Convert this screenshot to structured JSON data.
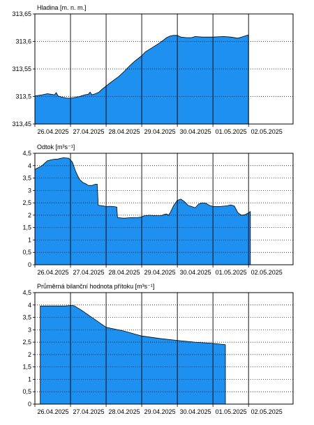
{
  "x_tick_labels": [
    "26.04.2025",
    "27.04.2025",
    "28.04.2025",
    "29.04.2025",
    "30.04.2025",
    "01.05.2025",
    "02.05.2025"
  ],
  "colors": {
    "fill": "#1E90EF",
    "line": "#000000",
    "grid_dotted": "#000000",
    "background": "#ffffff"
  },
  "chart_data": [
    {
      "type": "area",
      "title": "Hladina [m. n. m.]",
      "ylim": [
        313.45,
        313.65
      ],
      "ytick_labels": [
        "313,65",
        "313,6",
        "313,55",
        "313,5",
        "313,45"
      ],
      "x_range": [
        0,
        7.25
      ],
      "x_unit": "days from 26.04.2025 00:00",
      "grid": true,
      "series": [
        {
          "points": [
            [
              0,
              313.501
            ],
            [
              0.2,
              313.503
            ],
            [
              0.35,
              313.505
            ],
            [
              0.45,
              313.504
            ],
            [
              0.55,
              313.503
            ],
            [
              0.6,
              313.507
            ],
            [
              0.65,
              313.501
            ],
            [
              0.75,
              313.499
            ],
            [
              0.9,
              313.497
            ],
            [
              1.0,
              313.497
            ],
            [
              1.1,
              313.498
            ],
            [
              1.25,
              313.5
            ],
            [
              1.4,
              313.503
            ],
            [
              1.5,
              313.504
            ],
            [
              1.55,
              313.508
            ],
            [
              1.6,
              313.503
            ],
            [
              1.7,
              313.505
            ],
            [
              1.8,
              313.508
            ],
            [
              1.9,
              313.514
            ],
            [
              2.0,
              313.519
            ],
            [
              2.1,
              313.524
            ],
            [
              2.2,
              313.529
            ],
            [
              2.35,
              313.536
            ],
            [
              2.5,
              313.545
            ],
            [
              2.65,
              313.555
            ],
            [
              2.8,
              313.564
            ],
            [
              2.9,
              313.569
            ],
            [
              3.0,
              313.574
            ],
            [
              3.1,
              313.581
            ],
            [
              3.3,
              313.589
            ],
            [
              3.45,
              313.595
            ],
            [
              3.6,
              313.602
            ],
            [
              3.7,
              313.607
            ],
            [
              3.8,
              313.61
            ],
            [
              3.9,
              313.611
            ],
            [
              4.0,
              313.611
            ],
            [
              4.1,
              313.608
            ],
            [
              4.25,
              313.607
            ],
            [
              4.4,
              313.607
            ],
            [
              4.5,
              313.609
            ],
            [
              4.7,
              313.608
            ],
            [
              5.0,
              313.608
            ],
            [
              5.3,
              313.609
            ],
            [
              5.5,
              313.608
            ],
            [
              5.7,
              313.606
            ],
            [
              5.8,
              313.608
            ],
            [
              5.9,
              313.61
            ],
            [
              6.0,
              313.612
            ]
          ]
        }
      ]
    },
    {
      "type": "area",
      "title": "Odtok [m³s⁻¹]",
      "ylim": [
        0,
        4.5
      ],
      "ytick_labels": [
        "4,5",
        "4",
        "3,5",
        "3",
        "2,5",
        "2",
        "1,5",
        "1",
        "0,5",
        "0"
      ],
      "x_range": [
        0,
        7.25
      ],
      "x_unit": "days from 26.04.2025 00:00",
      "grid": true,
      "series": [
        {
          "points": [
            [
              0,
              3.85
            ],
            [
              0.2,
              4.0
            ],
            [
              0.35,
              4.2
            ],
            [
              0.5,
              4.25
            ],
            [
              0.65,
              4.27
            ],
            [
              0.8,
              4.32
            ],
            [
              0.95,
              4.3
            ],
            [
              1.05,
              4.15
            ],
            [
              1.15,
              3.75
            ],
            [
              1.25,
              3.45
            ],
            [
              1.35,
              3.32
            ],
            [
              1.45,
              3.25
            ],
            [
              1.5,
              3.2
            ],
            [
              1.6,
              3.2
            ],
            [
              1.7,
              3.25
            ],
            [
              1.75,
              3.25
            ],
            [
              1.78,
              2.4
            ],
            [
              1.9,
              2.38
            ],
            [
              2.0,
              2.35
            ],
            [
              2.1,
              2.36
            ],
            [
              2.2,
              2.35
            ],
            [
              2.3,
              2.33
            ],
            [
              2.32,
              1.9
            ],
            [
              2.5,
              1.88
            ],
            [
              2.7,
              1.9
            ],
            [
              2.9,
              1.91
            ],
            [
              3.0,
              1.93
            ],
            [
              3.05,
              1.97
            ],
            [
              3.2,
              2.0
            ],
            [
              3.4,
              1.98
            ],
            [
              3.55,
              1.98
            ],
            [
              3.6,
              2.02
            ],
            [
              3.7,
              2.05
            ],
            [
              3.75,
              2.0
            ],
            [
              3.8,
              2.1
            ],
            [
              3.9,
              2.4
            ],
            [
              4.0,
              2.6
            ],
            [
              4.1,
              2.65
            ],
            [
              4.2,
              2.55
            ],
            [
              4.3,
              2.4
            ],
            [
              4.4,
              2.35
            ],
            [
              4.5,
              2.3
            ],
            [
              4.6,
              2.45
            ],
            [
              4.7,
              2.5
            ],
            [
              4.8,
              2.48
            ],
            [
              4.9,
              2.4
            ],
            [
              5.0,
              2.35
            ],
            [
              5.2,
              2.35
            ],
            [
              5.4,
              2.38
            ],
            [
              5.5,
              2.42
            ],
            [
              5.6,
              2.37
            ],
            [
              5.7,
              2.1
            ],
            [
              5.8,
              2.0
            ],
            [
              5.9,
              2.02
            ],
            [
              6.0,
              2.1
            ],
            [
              6.05,
              2.15
            ]
          ]
        }
      ]
    },
    {
      "type": "area",
      "title": "Průměrná bilanční hodnota přítoku   [m³s⁻¹]",
      "ylim": [
        0,
        4.5
      ],
      "ytick_labels": [
        "4,5",
        "4",
        "3,5",
        "3",
        "2,5",
        "2",
        "1,5",
        "1",
        "0,5",
        "0"
      ],
      "x_range": [
        0,
        7.25
      ],
      "x_unit": "days from 26.04.2025 00:00",
      "grid": true,
      "series": [
        {
          "points": [
            [
              0.15,
              3.96
            ],
            [
              0.5,
              3.96
            ],
            [
              0.85,
              3.96
            ],
            [
              1.0,
              3.98
            ],
            [
              1.1,
              3.97
            ],
            [
              1.3,
              3.8
            ],
            [
              1.6,
              3.5
            ],
            [
              2.0,
              3.1
            ],
            [
              2.5,
              2.95
            ],
            [
              3.0,
              2.75
            ],
            [
              3.5,
              2.65
            ],
            [
              4.0,
              2.57
            ],
            [
              4.5,
              2.5
            ],
            [
              5.0,
              2.45
            ],
            [
              5.35,
              2.4
            ]
          ]
        }
      ]
    }
  ]
}
